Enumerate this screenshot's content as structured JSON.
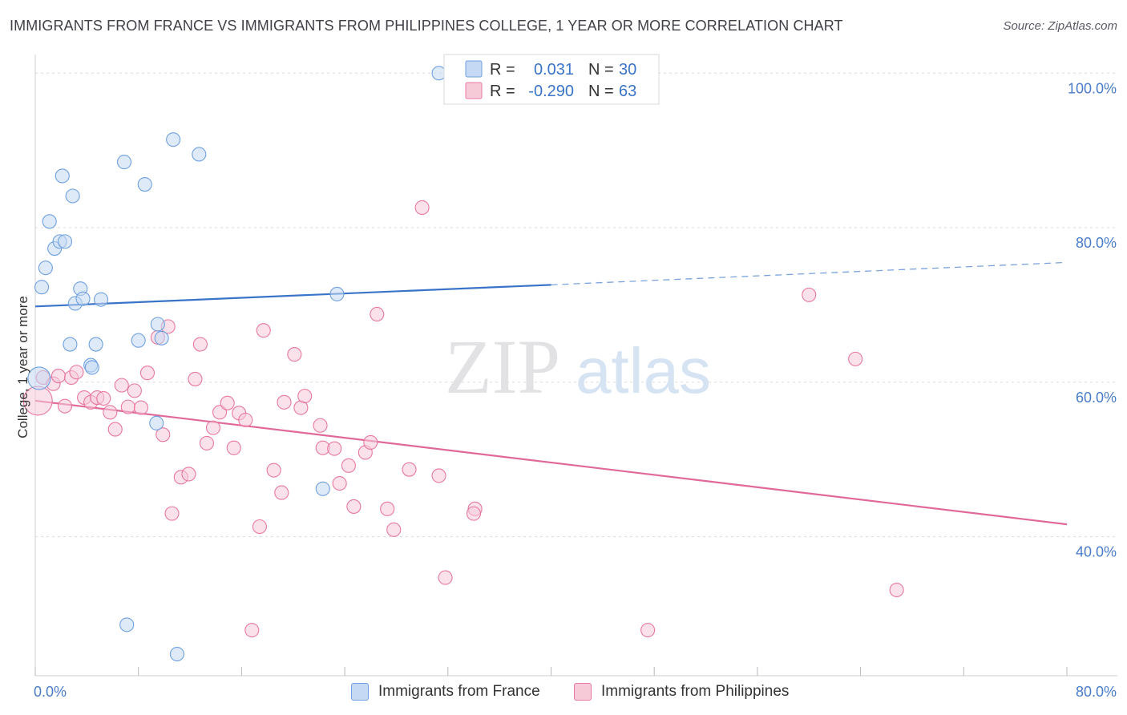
{
  "title": "IMMIGRANTS FROM FRANCE VS IMMIGRANTS FROM PHILIPPINES COLLEGE, 1 YEAR OR MORE CORRELATION CHART",
  "source": "Source: ZipAtlas.com",
  "watermark": {
    "zip": "ZIP",
    "atlas": "atlas"
  },
  "chart_data": {
    "type": "scatter",
    "title": "IMMIGRANTS FROM FRANCE VS IMMIGRANTS FROM PHILIPPINES COLLEGE, 1 YEAR OR MORE CORRELATION CHART",
    "xlabel": "",
    "ylabel": "College, 1 year or more",
    "xlim": [
      0,
      80
    ],
    "ylim": [
      22,
      102
    ],
    "x_tick_labels": [
      {
        "value": 0,
        "label": "0.0%"
      },
      {
        "value": 80,
        "label": "80.0%"
      }
    ],
    "y_tick_labels": [
      {
        "value": 100,
        "label": "100.0%"
      },
      {
        "value": 80,
        "label": "80.0%"
      },
      {
        "value": 60,
        "label": "60.0%"
      },
      {
        "value": 40,
        "label": "40.0%"
      }
    ],
    "grid": "horizontal dashed",
    "legend_placement": "bottom",
    "series": [
      {
        "name": "Immigrants from France",
        "color": "#6fa0e0",
        "fill": "#c5d9f4",
        "stats": {
          "r_label": "R =",
          "r": "0.031",
          "n_label": "N =",
          "n": "30"
        },
        "trend": {
          "x0": 0,
          "y0": 69.8,
          "x1": 40,
          "y1": 72.6,
          "dashed_to_x": 80,
          "dashed_to_y": 75.5
        },
        "points": [
          {
            "x": 0.3,
            "y": 60.5,
            "r": 14
          },
          {
            "x": 0.5,
            "y": 72.3
          },
          {
            "x": 0.8,
            "y": 74.8
          },
          {
            "x": 1.1,
            "y": 80.8
          },
          {
            "x": 1.5,
            "y": 77.3
          },
          {
            "x": 1.9,
            "y": 78.2
          },
          {
            "x": 2.3,
            "y": 78.2
          },
          {
            "x": 2.1,
            "y": 86.7
          },
          {
            "x": 2.9,
            "y": 84.1
          },
          {
            "x": 3.1,
            "y": 70.2
          },
          {
            "x": 3.5,
            "y": 72.1
          },
          {
            "x": 3.7,
            "y": 70.8
          },
          {
            "x": 5.1,
            "y": 70.7
          },
          {
            "x": 2.7,
            "y": 64.9
          },
          {
            "x": 4.7,
            "y": 64.9
          },
          {
            "x": 4.3,
            "y": 62.2
          },
          {
            "x": 4.4,
            "y": 61.9
          },
          {
            "x": 6.9,
            "y": 88.5
          },
          {
            "x": 8.5,
            "y": 85.6
          },
          {
            "x": 10.7,
            "y": 91.4
          },
          {
            "x": 12.7,
            "y": 89.5
          },
          {
            "x": 9.5,
            "y": 67.5
          },
          {
            "x": 8.0,
            "y": 65.4
          },
          {
            "x": 9.8,
            "y": 65.7
          },
          {
            "x": 9.4,
            "y": 54.7
          },
          {
            "x": 31.3,
            "y": 100.0
          },
          {
            "x": 23.4,
            "y": 71.4
          },
          {
            "x": 22.3,
            "y": 46.2
          },
          {
            "x": 7.1,
            "y": 28.6
          },
          {
            "x": 11.0,
            "y": 24.8
          }
        ]
      },
      {
        "name": "Immigrants from Philippines",
        "color": "#e8789e",
        "fill": "#f7cad8",
        "stats": {
          "r_label": "R =",
          "r": "-0.290",
          "n_label": "N =",
          "n": "63"
        },
        "trend": {
          "x0": 0,
          "y0": 57.6,
          "x1": 80,
          "y1": 41.6
        },
        "points": [
          {
            "x": 0.2,
            "y": 57.6,
            "r": 18
          },
          {
            "x": 0.6,
            "y": 60.6
          },
          {
            "x": 1.4,
            "y": 59.8
          },
          {
            "x": 1.8,
            "y": 60.8
          },
          {
            "x": 2.3,
            "y": 56.9
          },
          {
            "x": 2.8,
            "y": 60.6
          },
          {
            "x": 3.2,
            "y": 61.3
          },
          {
            "x": 3.8,
            "y": 58.0
          },
          {
            "x": 4.3,
            "y": 57.4
          },
          {
            "x": 4.8,
            "y": 58.0
          },
          {
            "x": 5.3,
            "y": 57.9
          },
          {
            "x": 5.8,
            "y": 56.1
          },
          {
            "x": 6.2,
            "y": 53.9
          },
          {
            "x": 6.7,
            "y": 59.6
          },
          {
            "x": 7.2,
            "y": 56.8
          },
          {
            "x": 7.7,
            "y": 58.9
          },
          {
            "x": 8.2,
            "y": 56.7
          },
          {
            "x": 8.7,
            "y": 61.2
          },
          {
            "x": 9.5,
            "y": 65.8
          },
          {
            "x": 10.3,
            "y": 67.2
          },
          {
            "x": 9.9,
            "y": 53.2
          },
          {
            "x": 10.6,
            "y": 43.0
          },
          {
            "x": 11.3,
            "y": 47.7
          },
          {
            "x": 11.9,
            "y": 48.1
          },
          {
            "x": 12.4,
            "y": 60.4
          },
          {
            "x": 12.8,
            "y": 64.9
          },
          {
            "x": 13.3,
            "y": 52.1
          },
          {
            "x": 13.8,
            "y": 54.1
          },
          {
            "x": 14.3,
            "y": 56.1
          },
          {
            "x": 14.9,
            "y": 57.3
          },
          {
            "x": 15.4,
            "y": 51.5
          },
          {
            "x": 15.8,
            "y": 56.0
          },
          {
            "x": 16.3,
            "y": 55.1
          },
          {
            "x": 16.8,
            "y": 27.9
          },
          {
            "x": 17.4,
            "y": 41.3
          },
          {
            "x": 17.7,
            "y": 66.7
          },
          {
            "x": 18.5,
            "y": 48.6
          },
          {
            "x": 19.1,
            "y": 45.7
          },
          {
            "x": 19.3,
            "y": 57.4
          },
          {
            "x": 20.1,
            "y": 63.6
          },
          {
            "x": 20.6,
            "y": 56.7
          },
          {
            "x": 20.9,
            "y": 58.2
          },
          {
            "x": 22.1,
            "y": 54.4
          },
          {
            "x": 22.3,
            "y": 51.5
          },
          {
            "x": 23.2,
            "y": 51.4
          },
          {
            "x": 23.6,
            "y": 46.9
          },
          {
            "x": 24.3,
            "y": 49.2
          },
          {
            "x": 24.7,
            "y": 43.9
          },
          {
            "x": 25.6,
            "y": 50.9
          },
          {
            "x": 26.0,
            "y": 52.2
          },
          {
            "x": 26.5,
            "y": 68.8
          },
          {
            "x": 27.3,
            "y": 43.6
          },
          {
            "x": 27.8,
            "y": 40.9
          },
          {
            "x": 29.0,
            "y": 48.7
          },
          {
            "x": 30.0,
            "y": 82.6
          },
          {
            "x": 31.3,
            "y": 47.9
          },
          {
            "x": 31.8,
            "y": 34.7
          },
          {
            "x": 34.1,
            "y": 43.6
          },
          {
            "x": 34.0,
            "y": 43.0
          },
          {
            "x": 47.5,
            "y": 27.9
          },
          {
            "x": 60.0,
            "y": 71.3
          },
          {
            "x": 63.6,
            "y": 63.0
          },
          {
            "x": 66.8,
            "y": 33.1
          }
        ]
      }
    ]
  }
}
